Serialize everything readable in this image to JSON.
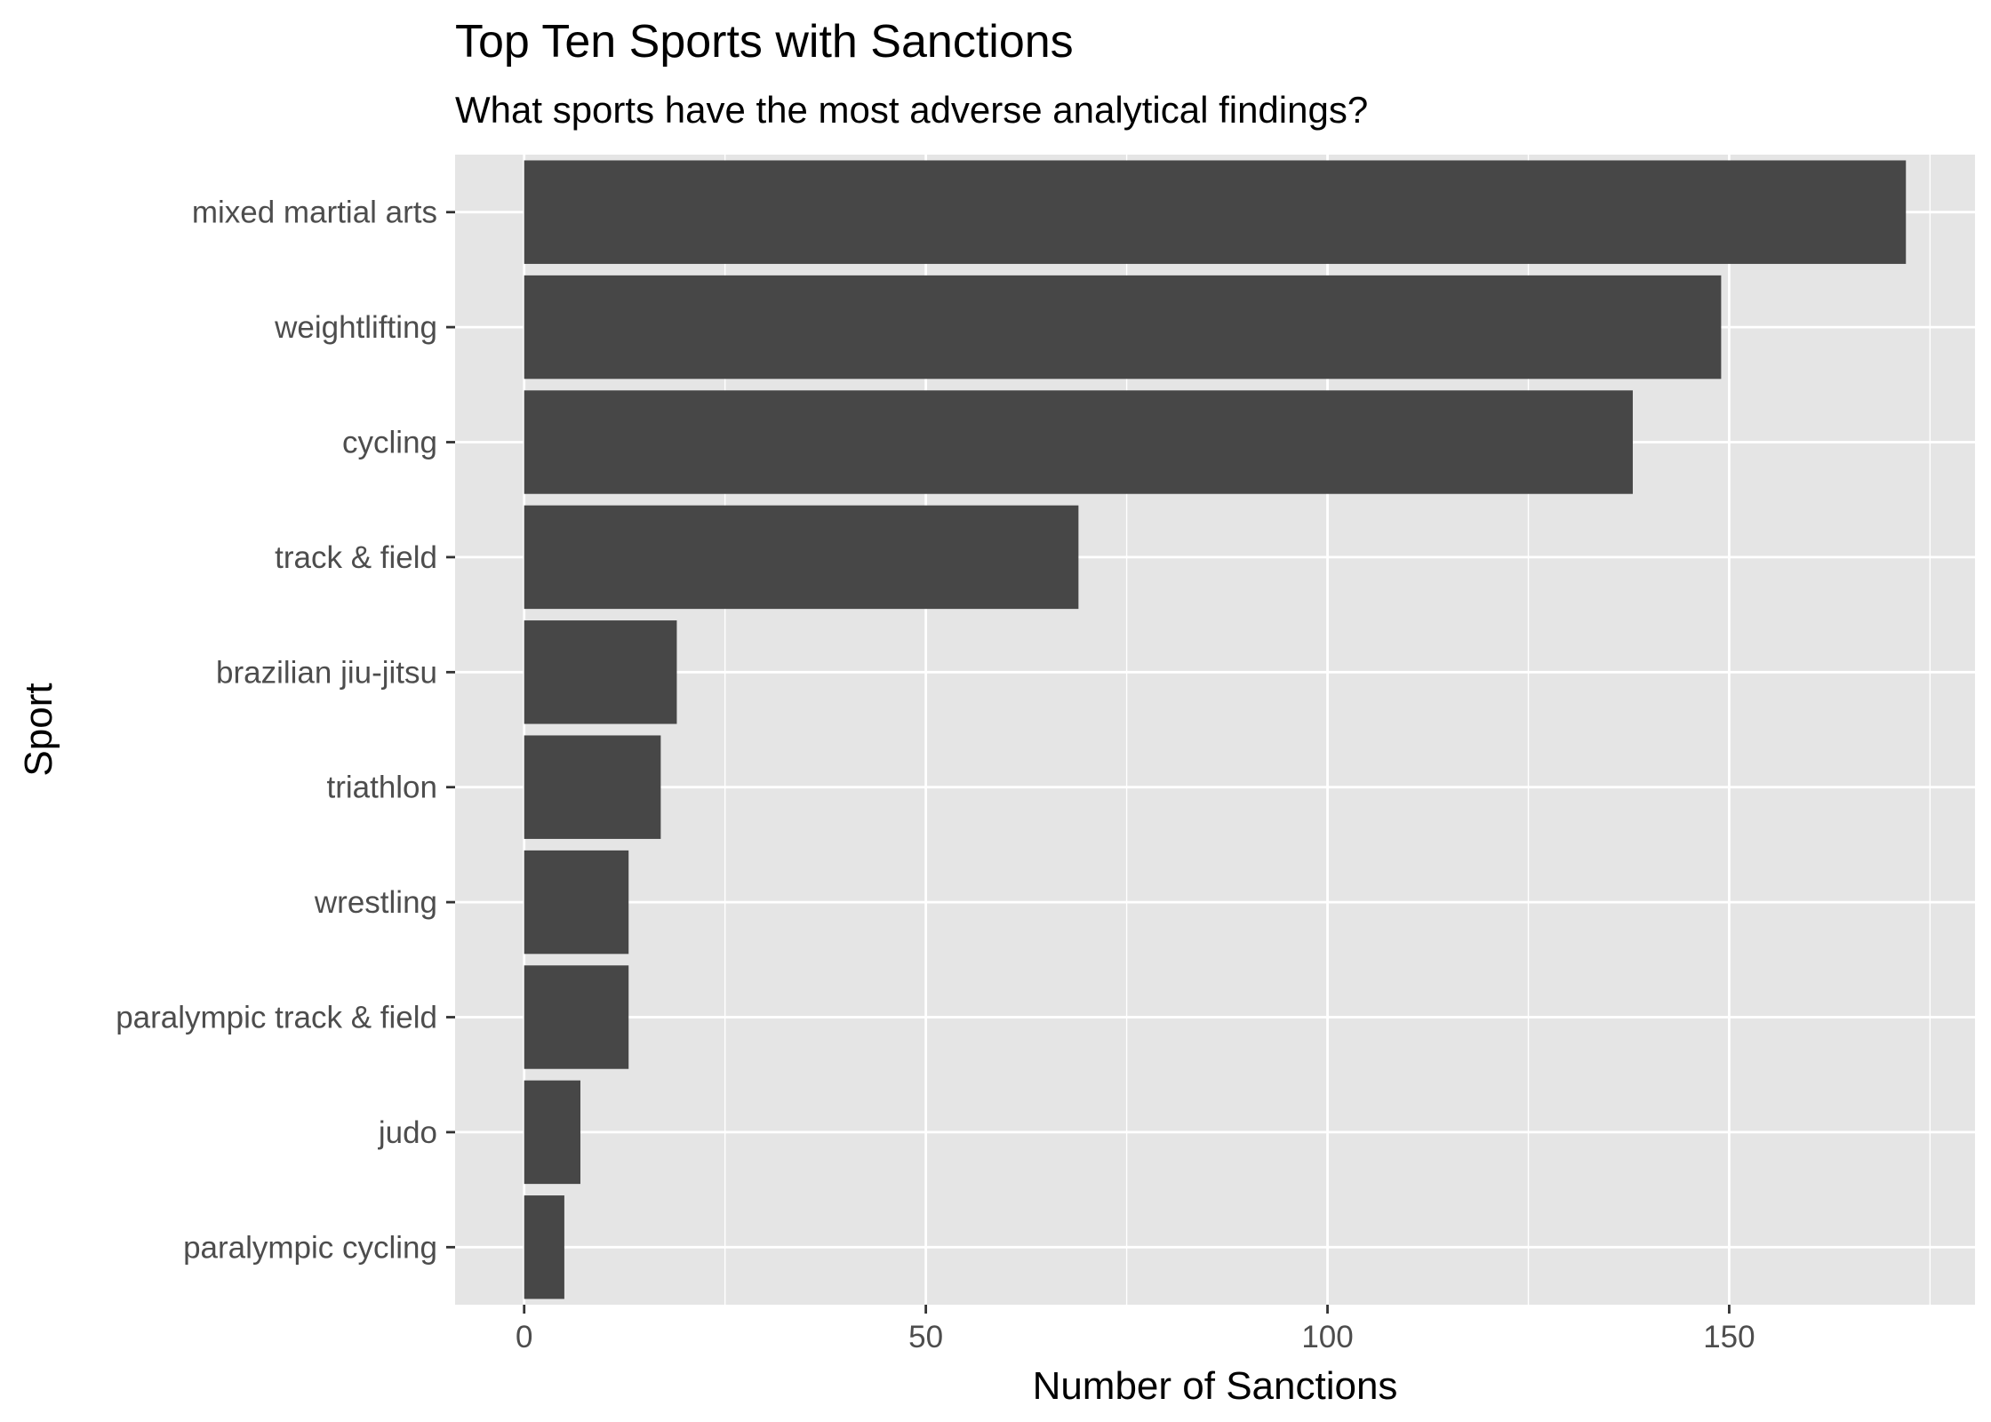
{
  "chart_data": {
    "type": "bar",
    "orientation": "horizontal",
    "title": "Top Ten Sports with Sanctions",
    "subtitle": "What sports have the most adverse analytical findings?",
    "xlabel": "Number of Sanctions",
    "ylabel": "Sport",
    "categories": [
      "mixed martial arts",
      "weightlifting",
      "cycling",
      "track & field",
      "brazilian jiu-jitsu",
      "triathlon",
      "wrestling",
      "paralympic track & field",
      "judo",
      "paralympic cycling"
    ],
    "values": [
      172,
      149,
      138,
      69,
      19,
      17,
      13,
      13,
      7,
      5
    ],
    "xlim": [
      -8.6,
      180.6
    ],
    "x_ticks": [
      0,
      50,
      100,
      150
    ],
    "grid": true,
    "colors": {
      "bar": "#474747",
      "panel": "#e5e5e5",
      "grid": "#ffffff"
    }
  }
}
